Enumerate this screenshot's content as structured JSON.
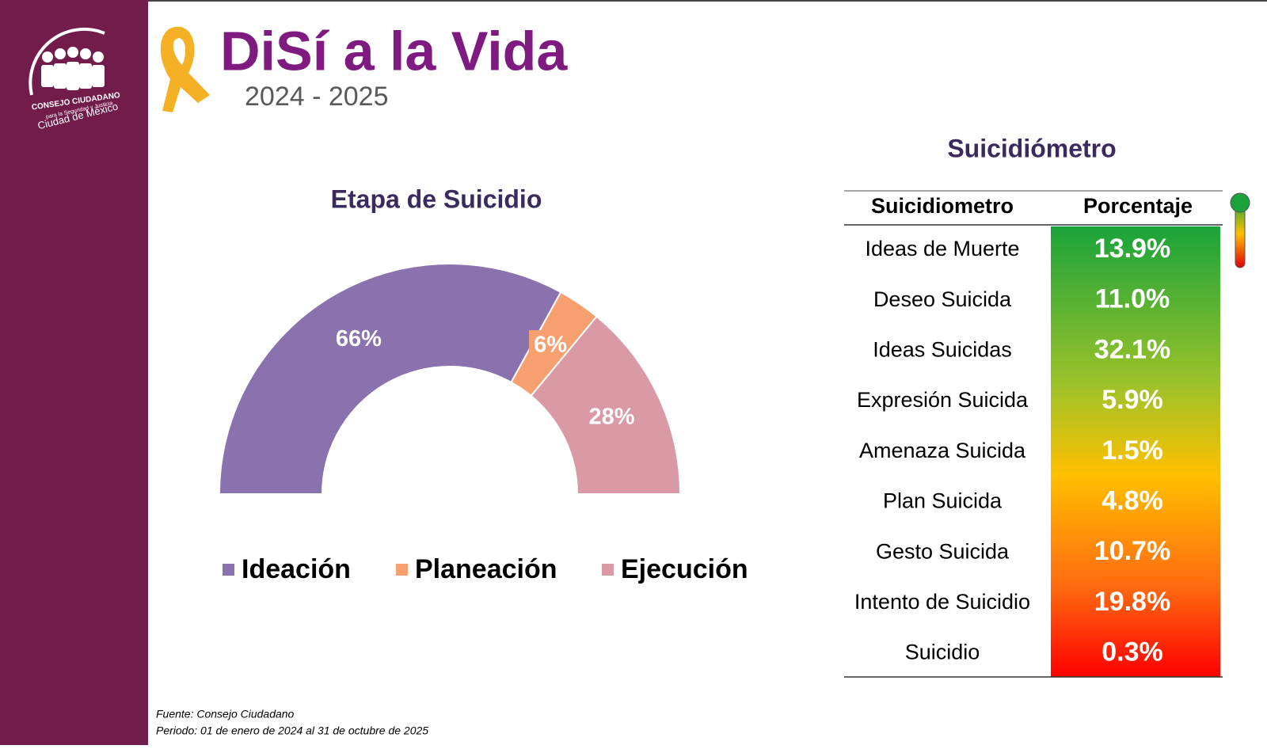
{
  "header": {
    "title": "DiSí a la Vida",
    "subtitle": "2024 - 2025",
    "logo": {
      "line1": "CONSEJO CIUDADANO",
      "line2": "para la Seguridad y Justicia",
      "line3": "Ciudad de México"
    }
  },
  "chart_data": {
    "type": "pie",
    "title": "Etapa de Suicidio",
    "categories": [
      "Ideación",
      "Planeación",
      "Ejecución"
    ],
    "values": [
      66,
      6,
      28
    ],
    "value_labels": [
      "66%",
      "6%",
      "28%"
    ],
    "colors": [
      "#8a72ae",
      "#f79f6f",
      "#d99aa5"
    ]
  },
  "table": {
    "title": "Suicidiómetro",
    "columns": [
      "Suicidiometro",
      "Porcentaje"
    ],
    "rows": [
      [
        "Ideas de Muerte",
        "13.9%"
      ],
      [
        "Deseo Suicida",
        "11.0%"
      ],
      [
        "Ideas Suicidas",
        "32.1%"
      ],
      [
        "Expresión Suicida",
        "5.9%"
      ],
      [
        "Amenaza Suicida",
        "1.5%"
      ],
      [
        "Plan Suicida",
        "4.8%"
      ],
      [
        "Gesto Suicida",
        "10.7%"
      ],
      [
        "Intento de Suicidio",
        "19.8%"
      ],
      [
        "Suicidio",
        "0.3%"
      ]
    ]
  },
  "footer": {
    "source": "Fuente: Consejo Ciudadano",
    "period": "Periodo: 01 de enero de 2024 al 31 de octubre de 2025"
  }
}
